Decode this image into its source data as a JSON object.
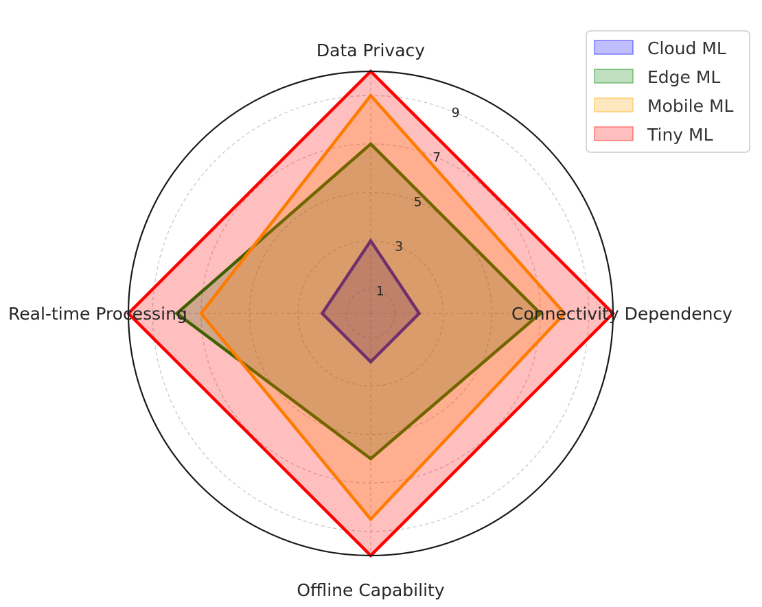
{
  "chart_data": {
    "type": "radar",
    "axes": [
      "Data Privacy",
      "Connectivity Dependency",
      "Offline Capability",
      "Real-time Processing"
    ],
    "radial_ticks": [
      1,
      3,
      5,
      7,
      9
    ],
    "rlim": [
      0,
      10
    ],
    "grid": true,
    "legend_position": "top-right",
    "series": [
      {
        "name": "Cloud ML",
        "values": [
          3,
          2,
          2,
          2
        ],
        "color": "#0000ff"
      },
      {
        "name": "Edge ML",
        "values": [
          7,
          7,
          6,
          8
        ],
        "color": "#008000"
      },
      {
        "name": "Mobile ML",
        "values": [
          9,
          8,
          8.5,
          7
        ],
        "color": "#ffa500"
      },
      {
        "name": "Tiny ML",
        "values": [
          10,
          10,
          10,
          10
        ],
        "color": "#ff0000"
      }
    ]
  }
}
